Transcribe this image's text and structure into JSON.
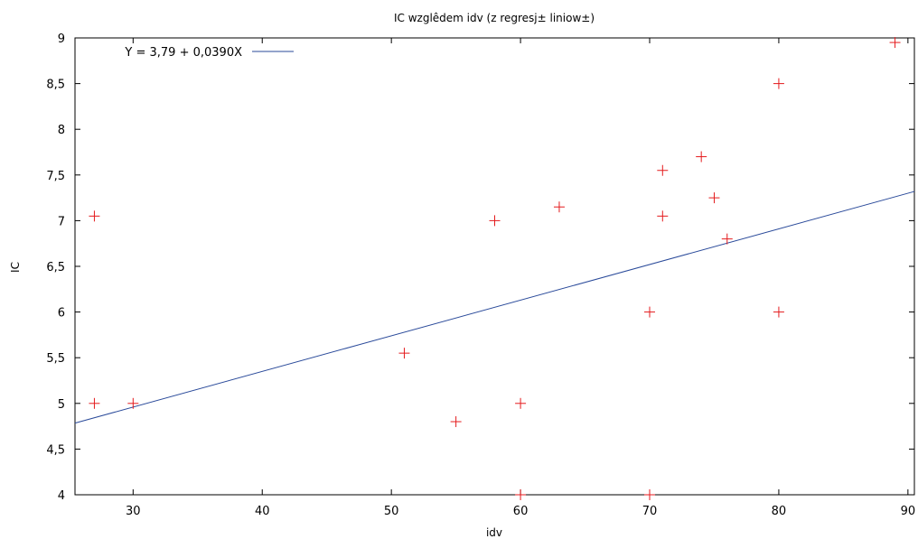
{
  "chart_data": {
    "type": "scatter",
    "title": "IC wzglêdem idv (z regresj± liniow±)",
    "xlabel": "idv",
    "ylabel": "IC",
    "xlim": [
      25.5,
      90.5
    ],
    "ylim": [
      4,
      9
    ],
    "x_ticks": [
      "30",
      "40",
      "50",
      "60",
      "70",
      "80",
      "90"
    ],
    "x_tick_values": [
      30,
      40,
      50,
      60,
      70,
      80,
      90
    ],
    "y_ticks": [
      "4",
      "4,5",
      "5",
      "5,5",
      "6",
      "6,5",
      "7",
      "7,5",
      "8",
      "8,5",
      "9"
    ],
    "y_tick_values": [
      4,
      4.5,
      5,
      5.5,
      6,
      6.5,
      7,
      7.5,
      8,
      8.5,
      9
    ],
    "grid": false,
    "legend_position": "top-left",
    "series": [
      {
        "kind": "points",
        "color": "#e41a1c",
        "marker": "plus",
        "points": [
          [
            27,
            7.05
          ],
          [
            27,
            5.0
          ],
          [
            30,
            5.0
          ],
          [
            51,
            5.55
          ],
          [
            55,
            4.8
          ],
          [
            58,
            7.0
          ],
          [
            60,
            5.0
          ],
          [
            60,
            4.0
          ],
          [
            63,
            7.15
          ],
          [
            70,
            6.0
          ],
          [
            70,
            4.0
          ],
          [
            71,
            7.55
          ],
          [
            71,
            7.05
          ],
          [
            74,
            7.7
          ],
          [
            75,
            7.25
          ],
          [
            76,
            6.8
          ],
          [
            80,
            8.5
          ],
          [
            80,
            6.0
          ],
          [
            89,
            8.95
          ]
        ]
      },
      {
        "kind": "line",
        "name": "Y = 3,79 + 0,0390X",
        "color": "#2a4a9a",
        "intercept": 3.79,
        "slope": 0.039
      }
    ]
  }
}
